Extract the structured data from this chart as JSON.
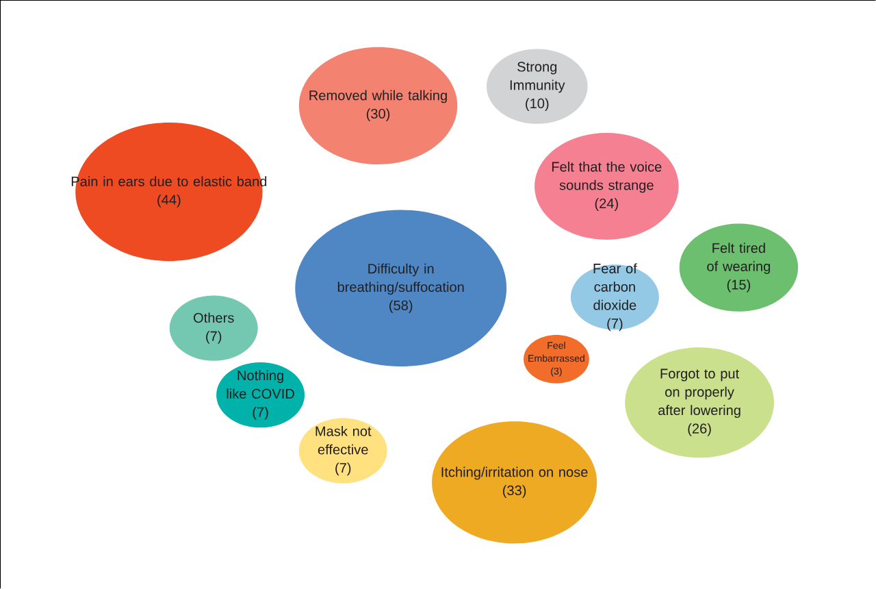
{
  "chart_data": {
    "type": "other",
    "categories": [
      "Pain in ears due to elastic band",
      "Removed while talking",
      "Strong Immunity",
      "Felt that the voice sounds strange",
      "Difficulty in breathing/suffocation",
      "Felt tired of wearing",
      "Fear of carbon dioxide",
      "Others",
      "Feel Embarrassed",
      "Forgot to put on properly after lowering",
      "Nothing like COVID",
      "Mask not effective",
      "Itching/irritation on nose"
    ],
    "values": [
      44,
      30,
      10,
      24,
      58,
      15,
      7,
      7,
      3,
      26,
      7,
      7,
      33
    ],
    "value_labels": [
      "(44)",
      "(30)",
      "(10)",
      "(24)",
      "(58)",
      "(15)",
      "(7)",
      "(7)",
      "(3)",
      "(26)",
      "(7)",
      "(7)",
      "(33)"
    ],
    "colors": [
      "#ef4b23",
      "#f48270",
      "#d1d3d4",
      "#f48092",
      "#4f87c5",
      "#6bbf6e",
      "#94c9e6",
      "#74c7b1",
      "#f26d2a",
      "#cbe08c",
      "#00b2a9",
      "#ffe180",
      "#eeaa22"
    ]
  }
}
